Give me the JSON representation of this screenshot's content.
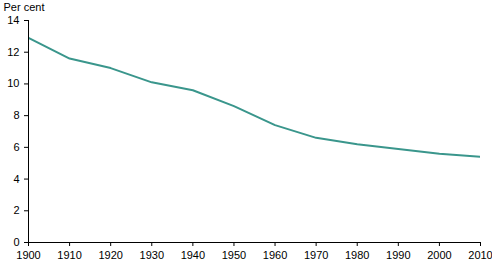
{
  "chart_data": {
    "type": "line",
    "y_label": "Per cent",
    "x": [
      1900,
      1910,
      1920,
      1930,
      1940,
      1950,
      1960,
      1970,
      1980,
      1990,
      2000,
      2010
    ],
    "values": [
      12.9,
      11.6,
      11.0,
      10.1,
      9.6,
      8.6,
      7.4,
      6.6,
      6.2,
      5.9,
      5.6,
      5.4
    ],
    "color": "#3a968c",
    "xlim": [
      1900,
      2010
    ],
    "xticks": [
      1900,
      1910,
      1920,
      1930,
      1940,
      1950,
      1960,
      1970,
      1980,
      1990,
      2000,
      2010
    ],
    "ylim": [
      0,
      14
    ],
    "yticks": [
      0,
      2,
      4,
      6,
      8,
      10,
      12,
      14
    ],
    "grid": false
  }
}
